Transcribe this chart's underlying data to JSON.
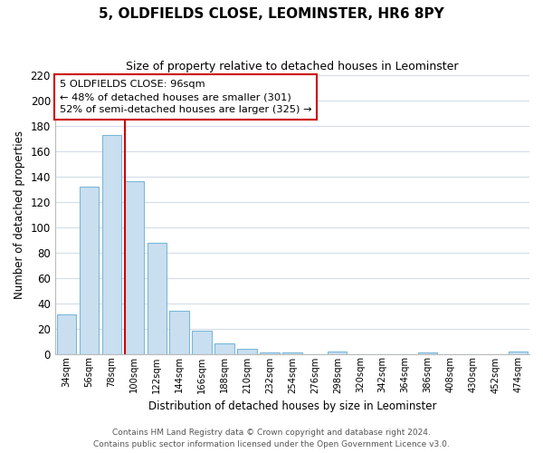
{
  "title": "5, OLDFIELDS CLOSE, LEOMINSTER, HR6 8PY",
  "subtitle": "Size of property relative to detached houses in Leominster",
  "xlabel": "Distribution of detached houses by size in Leominster",
  "ylabel": "Number of detached properties",
  "footer_line1": "Contains HM Land Registry data © Crown copyright and database right 2024.",
  "footer_line2": "Contains public sector information licensed under the Open Government Licence v3.0.",
  "bar_color": "#c9dff0",
  "bar_edge_color": "#7ab8d9",
  "marker_line_color": "#cc0000",
  "categories": [
    "34sqm",
    "56sqm",
    "78sqm",
    "100sqm",
    "122sqm",
    "144sqm",
    "166sqm",
    "188sqm",
    "210sqm",
    "232sqm",
    "254sqm",
    "276sqm",
    "298sqm",
    "320sqm",
    "342sqm",
    "364sqm",
    "386sqm",
    "408sqm",
    "430sqm",
    "452sqm",
    "474sqm"
  ],
  "values": [
    31,
    132,
    173,
    136,
    88,
    34,
    18,
    8,
    4,
    1,
    1,
    0,
    2,
    0,
    0,
    0,
    1,
    0,
    0,
    0,
    2
  ],
  "ylim": [
    0,
    220
  ],
  "yticks": [
    0,
    20,
    40,
    60,
    80,
    100,
    120,
    140,
    160,
    180,
    200,
    220
  ],
  "marker_bar_index": 3,
  "annotation_title": "5 OLDFIELDS CLOSE: 96sqm",
  "annotation_line1": "← 48% of detached houses are smaller (301)",
  "annotation_line2": "52% of semi-detached houses are larger (325) →",
  "background_color": "#ffffff",
  "grid_color": "#d4dce8"
}
